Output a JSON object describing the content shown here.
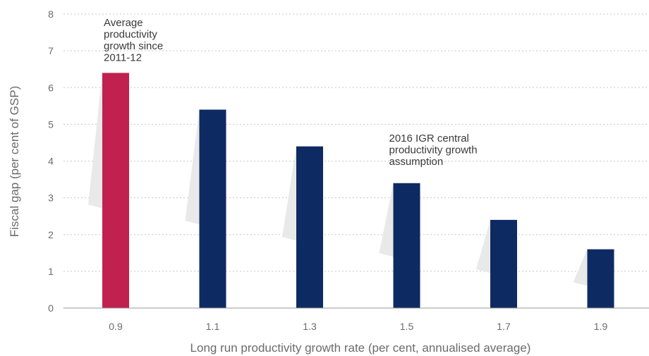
{
  "chart_data": {
    "type": "bar",
    "categories": [
      "0.9",
      "1.1",
      "1.3",
      "1.5",
      "1.7",
      "1.9"
    ],
    "values": [
      6.4,
      5.4,
      4.4,
      3.4,
      2.4,
      1.6
    ],
    "highlight_index": 0,
    "xlabel": "Long run productivity growth rate (per cent, annualised average)",
    "ylabel": "Fiscal gap (per cent of GSP)",
    "ylim": [
      0,
      8
    ],
    "yticks": [
      "0",
      "1",
      "2",
      "3",
      "4",
      "5",
      "6",
      "7",
      "8"
    ],
    "grid": true,
    "grid_style": "dotted",
    "annotations": [
      {
        "category": "0.9",
        "lines": [
          "Average",
          "productivity",
          "growth since",
          "2011-12"
        ]
      },
      {
        "category": "1.5",
        "lines": [
          "2016 IGR central",
          "productivity growth",
          "assumption"
        ]
      }
    ],
    "colors": {
      "highlight": "#c0214f",
      "bar": "#0e2a63",
      "grid": "#c8c8c8",
      "axis": "#9a9a9a",
      "text": "#6b6b6b",
      "shadow": "#e9e9e9"
    }
  }
}
